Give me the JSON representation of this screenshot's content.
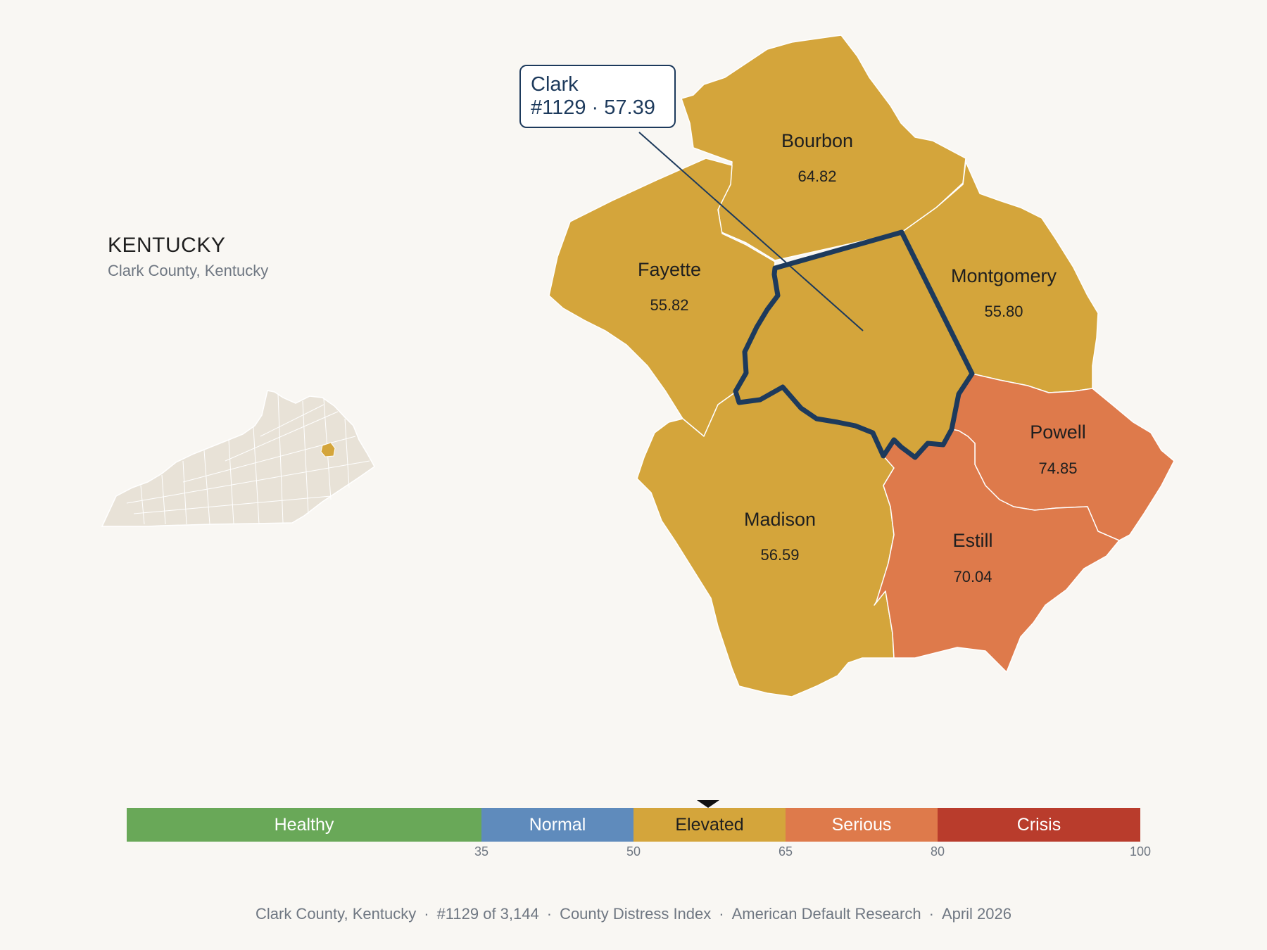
{
  "header": {
    "state": "KENTUCKY",
    "subtitle": "Clark County, Kentucky"
  },
  "callout": {
    "name": "Clark",
    "detail": "#1129 · 57.39"
  },
  "colors": {
    "elevated": "#d4a53b",
    "serious": "#de7a4b",
    "healthy": "#69a858",
    "normal": "#5f8bbc",
    "crisis": "#b93c2c",
    "outline": "#1d3a5c",
    "inset_fill": "#e8e2d7"
  },
  "counties": [
    {
      "name": "Bourbon",
      "value": "64.82",
      "band": "elevated"
    },
    {
      "name": "Fayette",
      "value": "55.82",
      "band": "elevated"
    },
    {
      "name": "Montgomery",
      "value": "55.80",
      "band": "elevated"
    },
    {
      "name": "Powell",
      "value": "74.85",
      "band": "serious"
    },
    {
      "name": "Madison",
      "value": "56.59",
      "band": "elevated"
    },
    {
      "name": "Estill",
      "value": "70.04",
      "band": "serious"
    }
  ],
  "legend": {
    "min": 0,
    "max": 100,
    "marker_value": 57.39,
    "bands": [
      {
        "label": "Healthy",
        "from": 0,
        "to": 35,
        "color": "#69a858"
      },
      {
        "label": "Normal",
        "from": 35,
        "to": 50,
        "color": "#5f8bbc"
      },
      {
        "label": "Elevated",
        "from": 50,
        "to": 65,
        "color": "#d4a53b"
      },
      {
        "label": "Serious",
        "from": 65,
        "to": 80,
        "color": "#de7a4b"
      },
      {
        "label": "Crisis",
        "from": 80,
        "to": 100,
        "color": "#b93c2c"
      }
    ],
    "ticks": [
      "35",
      "50",
      "65",
      "80",
      "100"
    ]
  },
  "footer": {
    "county": "Clark County, Kentucky",
    "rank": "#1129 of 3,144",
    "index": "County Distress Index",
    "source": "American Default Research",
    "date": "April 2026"
  }
}
